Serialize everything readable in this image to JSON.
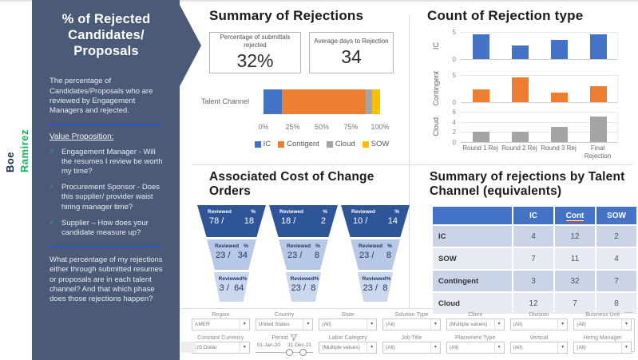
{
  "brand": {
    "first_name": "Boe",
    "last_name": "Ramirez"
  },
  "sidebar": {
    "title": "% of Rejected Candidates/ Proposals",
    "description": "The percentage of Candidates/Proposals who are reviewed by Engagement Managers and rejected.",
    "value_proposition_label": "Value Proposition:",
    "bullets": [
      "Engagement Manager - Will the resumes I review be worth my time?",
      "Procurement Sponsor - Does this supplier/ provider waist hiring manager time?",
      "Supplier – How does your candidate measure up?"
    ],
    "question": "What percentage of my rejections either through submitted resumes or proposals are in each talent channel? And that which phase does those rejections happen?"
  },
  "summary": {
    "title": "Summary of Rejections",
    "kpis": [
      {
        "label": "Percentage of submittals rejected",
        "value": "32%"
      },
      {
        "label": "Average days to Rejection",
        "value": "34"
      }
    ]
  },
  "chart_data": [
    {
      "type": "bar",
      "subtype": "stacked-horizontal",
      "row_label": "Talent Channel",
      "series": [
        {
          "name": "IC",
          "values": [
            16
          ],
          "color": "#4472C4"
        },
        {
          "name": "Contigent",
          "values": [
            72
          ],
          "color": "#ED7D31"
        },
        {
          "name": "Cloud",
          "values": [
            5
          ],
          "color": "#A5A5A5"
        },
        {
          "name": "SOW",
          "values": [
            7
          ],
          "color": "#FFC000"
        }
      ],
      "x_ticks": [
        "0%",
        "25%",
        "50%",
        "75%",
        "100%"
      ],
      "xlim": [
        0,
        100
      ],
      "legend_position": "bottom"
    },
    {
      "type": "bar",
      "title": "Count of Rejection type",
      "categories": [
        "Round 1 Rej",
        "Round 2 Rej",
        "Round 3 Rej",
        "Final Rejection"
      ],
      "panels": [
        {
          "name": "IC",
          "color": "#4472C4",
          "ylim": [
            0,
            5
          ],
          "y_ticks": [
            5,
            0
          ],
          "values": [
            4.5,
            2.5,
            3.5,
            4.6
          ]
        },
        {
          "name": "Contingent",
          "color": "#ED7D31",
          "ylim": [
            0,
            5
          ],
          "y_ticks": [
            5,
            0
          ],
          "values": [
            2.4,
            4.5,
            1.7,
            2.9
          ]
        },
        {
          "name": "Cloud",
          "color": "#A5A5A5",
          "ylim": [
            0,
            6
          ],
          "y_ticks": [
            6,
            4,
            2,
            0
          ],
          "values": [
            2,
            2,
            3,
            5
          ]
        }
      ]
    }
  ],
  "count_section": {
    "title": "Count of Rejection type"
  },
  "funnel_section": {
    "title": "Associated Cost of Change Orders",
    "col_header": "Reviewed",
    "pct_header": "%",
    "layer_colors": [
      "#2E5597",
      "#B7C7E6",
      "#CBD7EB"
    ],
    "funnels": [
      {
        "layers": [
          {
            "reviewed": "78",
            "pct": "18"
          },
          {
            "reviewed": "23",
            "pct": "34"
          },
          {
            "reviewed": "3",
            "pct": "64"
          }
        ]
      },
      {
        "layers": [
          {
            "reviewed": "18",
            "pct": "2"
          },
          {
            "reviewed": "23",
            "pct": "8"
          },
          {
            "reviewed": "23",
            "pct": "8"
          }
        ]
      },
      {
        "layers": [
          {
            "reviewed": "10",
            "pct": "14"
          },
          {
            "reviewed": "23",
            "pct": "8"
          },
          {
            "reviewed": "23",
            "pct": "8"
          }
        ]
      }
    ]
  },
  "table_section": {
    "title": "Summary of rejections by Talent Channel (equivalents)",
    "columns": [
      {
        "label": "IC",
        "underlined": false
      },
      {
        "label": "Cont",
        "underlined": true
      },
      {
        "label": "SOW",
        "underlined": false
      }
    ],
    "rows": [
      {
        "label": "IC",
        "values": [
          "4",
          "12",
          "2"
        ]
      },
      {
        "label": "SOW",
        "values": [
          "7",
          "11",
          "4"
        ]
      },
      {
        "label": "Contingent",
        "values": [
          "3",
          "32",
          "7"
        ]
      },
      {
        "label": "Cloud",
        "values": [
          "12",
          "7",
          "8"
        ]
      }
    ]
  },
  "filters": {
    "row1": [
      {
        "label": "Region",
        "type": "dropdown",
        "value": "AMER"
      },
      {
        "label": "Country",
        "type": "dropdown",
        "value": "United States"
      },
      {
        "label": "State",
        "type": "dropdown",
        "value": "(All)"
      },
      {
        "label": "Solution Type",
        "type": "dropdown",
        "value": "(All)"
      },
      {
        "label": "Client",
        "type": "dropdown",
        "value": "(Multiple values)"
      },
      {
        "label": "Division",
        "type": "dropdown",
        "value": "(All)"
      },
      {
        "label": "Business Unit",
        "type": "dropdown",
        "value": "(All)"
      }
    ],
    "row2": [
      {
        "label": "Constant Currency",
        "type": "dropdown",
        "value": "US Dollar"
      },
      {
        "label": "Period",
        "type": "slider",
        "start": "01-Jan-20",
        "end": "31-Dec-21"
      },
      {
        "label": "Labor Category",
        "type": "dropdown",
        "value": "(Multiple values)"
      },
      {
        "label": "Job Title",
        "type": "dropdown",
        "value": "(All)"
      },
      {
        "label": "Placement Type",
        "type": "dropdown",
        "value": "(All)"
      },
      {
        "label": "Vertical",
        "type": "dropdown",
        "value": "(All)"
      },
      {
        "label": "Hiring Manager",
        "type": "dropdown",
        "value": "(All)"
      }
    ]
  },
  "colors": {
    "sidebar_bg": "#4A5A77",
    "brand_green": "#1FAE62",
    "divider_blue": "#2F55CC",
    "chart_blue": "#4472C4",
    "chart_orange": "#ED7D31",
    "chart_gray": "#A5A5A5",
    "chart_yellow": "#FFC000",
    "table_header": "#4472C4",
    "funnel_dark": "#2E5597",
    "funnel_mid": "#B7C7E6",
    "funnel_light": "#CBD7EB"
  }
}
